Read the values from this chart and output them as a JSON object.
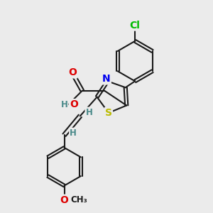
{
  "bg_color": "#ebebeb",
  "bond_color": "#1a1a1a",
  "bond_width": 1.5,
  "atom_colors": {
    "Cl": "#00bb00",
    "N": "#0000ee",
    "O": "#dd0000",
    "S": "#bbbb00",
    "H": "#4a8a8a",
    "C": "#1a1a1a"
  },
  "font_size": 10,
  "font_size_H": 8.5
}
